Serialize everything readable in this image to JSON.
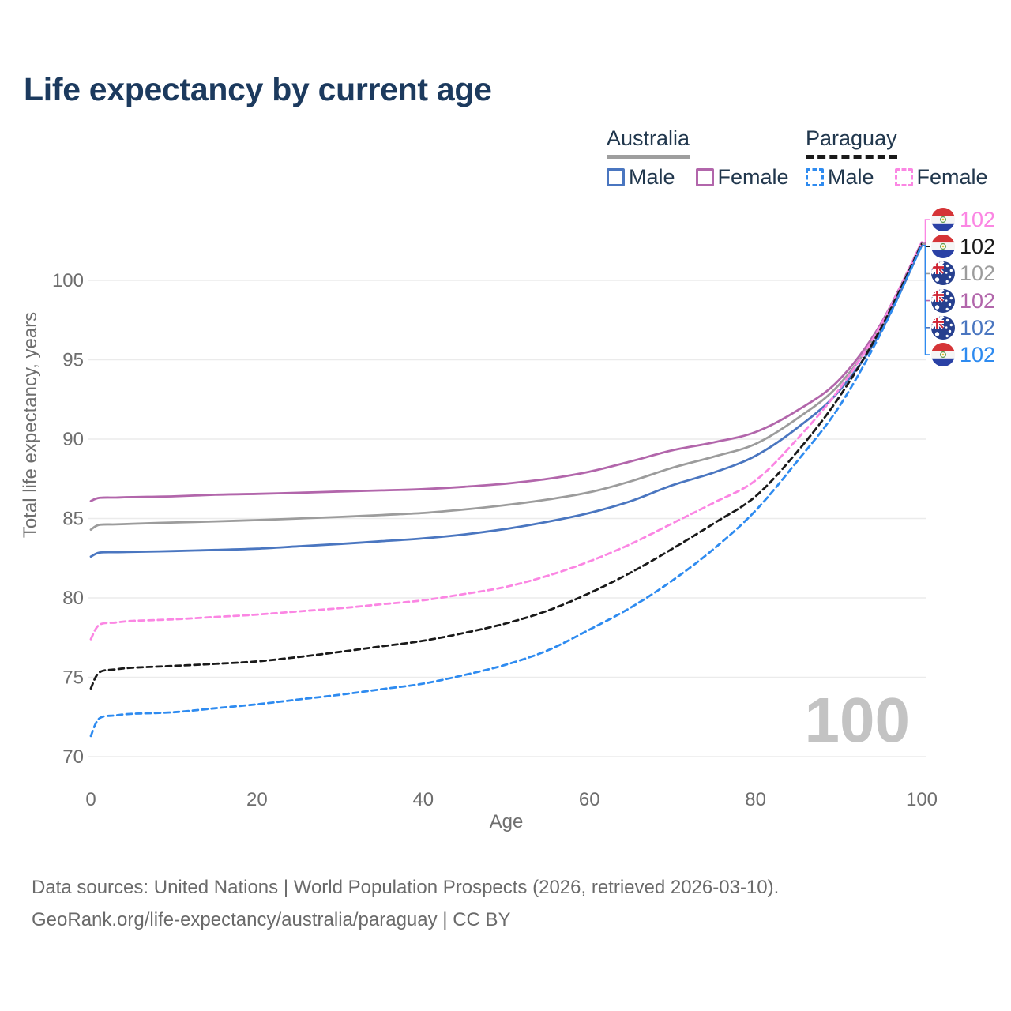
{
  "title": "Life expectancy by current age",
  "watermark": "100",
  "legend": {
    "groups": [
      {
        "country": "Australia",
        "line_style": "solid",
        "underline_color": "#9e9e9e",
        "items": [
          {
            "label": "Male",
            "color": "#4a76c0",
            "dashed": false
          },
          {
            "label": "Female",
            "color": "#b266ab",
            "dashed": false
          }
        ]
      },
      {
        "country": "Paraguay",
        "line_style": "dashed",
        "underline_color": "#1a1a1a",
        "items": [
          {
            "label": "Male",
            "color": "#2e8bf0",
            "dashed": true
          },
          {
            "label": "Female",
            "color": "#fb86e3",
            "dashed": true
          }
        ]
      }
    ]
  },
  "footer": {
    "line1": "Data sources: United Nations | World Population Prospects (2026, retrieved 2026-03-10).",
    "line2": "GeoRank.org/life-expectancy/australia/paraguay | CC BY"
  },
  "chart_data": {
    "type": "line",
    "title": "Life expectancy by current age",
    "xlabel": "Age",
    "ylabel": "Total life expectancy, years",
    "xlim": [
      0,
      100
    ],
    "ylim": [
      70,
      102.5
    ],
    "x_ticks": [
      0,
      20,
      40,
      60,
      80,
      100
    ],
    "y_ticks": [
      70,
      75,
      80,
      85,
      90,
      95,
      100
    ],
    "grid": "horizontal",
    "legend_position": "top-right",
    "x": [
      0,
      1,
      3,
      5,
      10,
      15,
      20,
      25,
      30,
      35,
      40,
      45,
      50,
      55,
      60,
      65,
      70,
      75,
      80,
      85,
      90,
      95,
      100
    ],
    "series": [
      {
        "id": "au_female",
        "name": "Australia Female",
        "color": "#b266ab",
        "dashed": false,
        "values": [
          86.1,
          86.3,
          86.32,
          86.35,
          86.4,
          86.5,
          86.55,
          86.62,
          86.7,
          86.77,
          86.85,
          87.0,
          87.2,
          87.5,
          87.95,
          88.6,
          89.3,
          89.8,
          90.45,
          91.8,
          93.7,
          97.2,
          102.4
        ]
      },
      {
        "id": "au_total",
        "name": "Australia",
        "color": "#9c9c9c",
        "dashed": false,
        "values": [
          84.3,
          84.6,
          84.63,
          84.67,
          84.75,
          84.82,
          84.9,
          85.0,
          85.1,
          85.22,
          85.35,
          85.57,
          85.85,
          86.2,
          86.65,
          87.35,
          88.2,
          88.9,
          89.7,
          91.3,
          93.4,
          97.0,
          102.3
        ]
      },
      {
        "id": "au_male",
        "name": "Australia Male",
        "color": "#4a76c0",
        "dashed": false,
        "values": [
          82.6,
          82.85,
          82.88,
          82.9,
          82.95,
          83.02,
          83.1,
          83.25,
          83.4,
          83.57,
          83.75,
          84.0,
          84.35,
          84.8,
          85.35,
          86.1,
          87.1,
          87.9,
          88.95,
          90.7,
          93.0,
          96.7,
          102.2
        ]
      },
      {
        "id": "py_female",
        "name": "Paraguay Female",
        "color": "#fb86e3",
        "dashed": true,
        "values": [
          77.4,
          78.3,
          78.45,
          78.55,
          78.65,
          78.8,
          78.95,
          79.15,
          79.35,
          79.6,
          79.85,
          80.25,
          80.7,
          81.4,
          82.3,
          83.4,
          84.7,
          86.0,
          87.4,
          90.0,
          93.1,
          97.1,
          102.4
        ]
      },
      {
        "id": "py_total",
        "name": "Paraguay",
        "color": "#1a1a1a",
        "dashed": true,
        "values": [
          74.3,
          75.3,
          75.5,
          75.6,
          75.72,
          75.85,
          76.0,
          76.28,
          76.6,
          76.95,
          77.3,
          77.8,
          78.4,
          79.2,
          80.3,
          81.6,
          83.1,
          84.7,
          86.4,
          89.2,
          92.6,
          96.9,
          102.3
        ]
      },
      {
        "id": "py_male",
        "name": "Paraguay Male",
        "color": "#2e8bf0",
        "dashed": true,
        "values": [
          71.3,
          72.4,
          72.6,
          72.7,
          72.8,
          73.05,
          73.3,
          73.6,
          73.9,
          74.25,
          74.6,
          75.15,
          75.8,
          76.7,
          78.0,
          79.4,
          81.1,
          83.1,
          85.5,
          88.6,
          92.0,
          96.6,
          102.2
        ]
      }
    ],
    "end_labels": [
      {
        "series": "py_female",
        "country": "paraguay",
        "value": "102",
        "color": "#fb86e3"
      },
      {
        "series": "py_total",
        "country": "paraguay",
        "value": "102",
        "color": "#1a1a1a"
      },
      {
        "series": "au_total",
        "country": "australia",
        "value": "102",
        "color": "#9c9c9c"
      },
      {
        "series": "au_female",
        "country": "australia",
        "value": "102",
        "color": "#b266ab"
      },
      {
        "series": "au_male",
        "country": "australia",
        "value": "102",
        "color": "#4a76c0"
      },
      {
        "series": "py_male",
        "country": "paraguay",
        "value": "102",
        "color": "#2e8bf0"
      }
    ]
  }
}
